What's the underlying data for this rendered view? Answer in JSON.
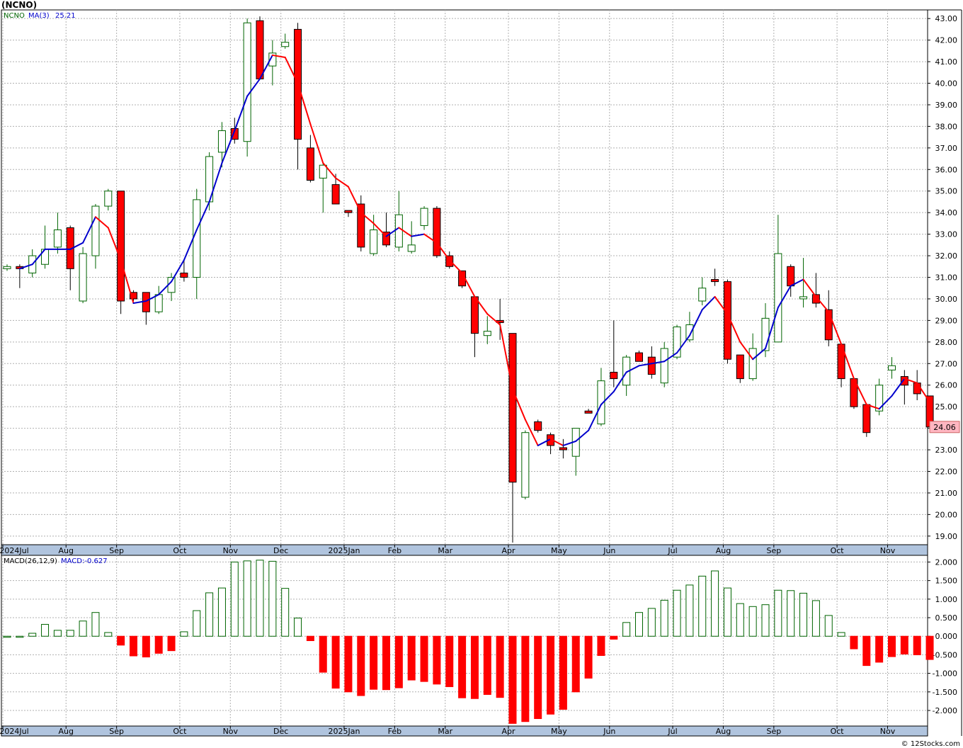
{
  "header": {
    "title": "(NCNO)"
  },
  "footer": {
    "copyright": "© 12Stocks.com"
  },
  "colors": {
    "up": "#006400",
    "down": "#ff0000",
    "ma_up": "#0000cc",
    "ma_down": "#ff0000",
    "grid": "#b0b0b0",
    "axis_band": "#b0c4de",
    "last_price_bg": "#ffb6c1"
  },
  "chart_data": [
    {
      "type": "candlestick",
      "legend": {
        "symbol": "NCNO",
        "indicator": "MA(3)",
        "value": "25.21"
      },
      "ylim": [
        18.6,
        43.4
      ],
      "y_ticks": [
        19,
        20,
        21,
        22,
        23,
        24,
        25,
        26,
        27,
        28,
        29,
        30,
        31,
        32,
        33,
        34,
        35,
        36,
        37,
        38,
        39,
        40,
        41,
        42,
        43
      ],
      "y_tick_labels": [
        "19.00",
        "20.00",
        "21.00",
        "22.00",
        "23.00",
        "24.00",
        "25.00",
        "26.00",
        "27.00",
        "28.00",
        "29.00",
        "30.00",
        "31.00",
        "32.00",
        "33.00",
        "34.00",
        "35.00",
        "36.00",
        "37.00",
        "38.00",
        "39.00",
        "40.00",
        "41.00",
        "42.00",
        "43.00"
      ],
      "last_price_label": "24.06",
      "x_labels": [
        {
          "label": "2024Jul",
          "week": 0
        },
        {
          "label": "Aug",
          "week": 5
        },
        {
          "label": "Sep",
          "week": 9
        },
        {
          "label": "Oct",
          "week": 14
        },
        {
          "label": "Nov",
          "week": 18
        },
        {
          "label": "Dec",
          "week": 22
        },
        {
          "label": "2025Jan",
          "week": 27
        },
        {
          "label": "Feb",
          "week": 31
        },
        {
          "label": "Mar",
          "week": 35
        },
        {
          "label": "Apr",
          "week": 40
        },
        {
          "label": "May",
          "week": 44
        },
        {
          "label": "Jun",
          "week": 48
        },
        {
          "label": "Jul",
          "week": 53
        },
        {
          "label": "Aug",
          "week": 57
        },
        {
          "label": "Sep",
          "week": 61
        },
        {
          "label": "Oct",
          "week": 66
        },
        {
          "label": "Nov",
          "week": 70
        }
      ],
      "ohlc": [
        [
          31.4,
          31.6,
          31.3,
          31.5
        ],
        [
          31.5,
          31.6,
          30.5,
          31.4
        ],
        [
          31.2,
          32.3,
          31.0,
          32.0
        ],
        [
          31.6,
          33.4,
          31.4,
          32.3
        ],
        [
          32.4,
          34.0,
          32.1,
          33.2
        ],
        [
          33.3,
          33.4,
          30.4,
          31.4
        ],
        [
          29.9,
          32.4,
          29.8,
          32.1
        ],
        [
          32.0,
          34.4,
          31.4,
          34.3
        ],
        [
          34.3,
          35.1,
          34.1,
          35.0
        ],
        [
          35.0,
          35.0,
          29.3,
          29.9
        ],
        [
          30.3,
          30.4,
          29.9,
          30.0
        ],
        [
          30.3,
          30.3,
          28.8,
          29.4
        ],
        [
          29.4,
          30.6,
          29.3,
          30.2
        ],
        [
          30.3,
          31.2,
          29.9,
          31.0
        ],
        [
          31.2,
          31.8,
          30.8,
          31.0
        ],
        [
          31.0,
          35.1,
          30.0,
          34.6
        ],
        [
          34.5,
          36.8,
          34.1,
          36.6
        ],
        [
          36.8,
          38.2,
          36.1,
          37.8
        ],
        [
          37.9,
          38.4,
          37.2,
          37.4
        ],
        [
          37.3,
          43.0,
          36.6,
          42.8
        ],
        [
          42.9,
          43.1,
          40.2,
          40.2
        ],
        [
          40.8,
          42.0,
          39.9,
          41.4
        ],
        [
          41.7,
          42.3,
          41.6,
          41.9
        ],
        [
          42.5,
          42.8,
          36.0,
          37.4
        ],
        [
          37.0,
          37.6,
          35.4,
          35.5
        ],
        [
          35.6,
          36.3,
          34.0,
          36.2
        ],
        [
          35.3,
          35.8,
          34.5,
          34.4
        ],
        [
          34.1,
          34.1,
          33.8,
          34.0
        ],
        [
          34.4,
          34.8,
          32.2,
          32.4
        ],
        [
          32.1,
          33.9,
          32.0,
          33.2
        ],
        [
          33.1,
          34.0,
          32.4,
          32.5
        ],
        [
          32.4,
          35.0,
          32.2,
          33.9
        ],
        [
          32.2,
          33.6,
          32.1,
          32.5
        ],
        [
          33.4,
          34.3,
          33.2,
          34.2
        ],
        [
          34.2,
          34.3,
          31.9,
          32.0
        ],
        [
          32.0,
          32.2,
          31.4,
          31.5
        ],
        [
          31.3,
          31.3,
          30.5,
          30.6
        ],
        [
          30.1,
          30.1,
          27.3,
          28.4
        ],
        [
          28.3,
          29.2,
          27.9,
          28.5
        ],
        [
          29.0,
          30.0,
          28.1,
          28.9
        ],
        [
          28.4,
          28.4,
          18.7,
          21.5
        ],
        [
          20.8,
          23.9,
          20.7,
          23.8
        ],
        [
          24.3,
          24.4,
          23.8,
          23.9
        ],
        [
          23.7,
          23.8,
          22.8,
          23.2
        ],
        [
          23.1,
          23.5,
          22.6,
          23.0
        ],
        [
          22.7,
          24.0,
          21.8,
          24.0
        ],
        [
          24.8,
          24.9,
          24.7,
          24.7
        ],
        [
          24.2,
          26.8,
          24.1,
          26.2
        ],
        [
          26.6,
          29.0,
          25.9,
          26.3
        ],
        [
          26.0,
          27.4,
          25.5,
          27.3
        ],
        [
          27.5,
          27.6,
          27.1,
          27.1
        ],
        [
          27.3,
          27.8,
          26.3,
          26.5
        ],
        [
          26.1,
          28.0,
          25.9,
          27.7
        ],
        [
          27.3,
          28.8,
          27.2,
          28.7
        ],
        [
          28.1,
          29.4,
          28.0,
          28.8
        ],
        [
          29.9,
          31.0,
          29.7,
          30.5
        ],
        [
          30.9,
          31.4,
          30.6,
          30.8
        ],
        [
          30.8,
          30.9,
          27.0,
          27.2
        ],
        [
          27.4,
          27.4,
          26.1,
          26.3
        ],
        [
          26.3,
          28.4,
          26.2,
          27.7
        ],
        [
          27.6,
          29.8,
          27.3,
          29.1
        ],
        [
          28.0,
          33.9,
          28.0,
          32.1
        ],
        [
          31.5,
          31.6,
          30.1,
          30.6
        ],
        [
          30.0,
          31.9,
          29.6,
          30.1
        ],
        [
          30.2,
          31.2,
          29.6,
          29.8
        ],
        [
          29.5,
          30.4,
          27.8,
          28.1
        ],
        [
          27.9,
          27.9,
          25.9,
          26.3
        ],
        [
          26.3,
          26.3,
          24.9,
          25.0
        ],
        [
          25.1,
          25.1,
          23.6,
          23.8
        ],
        [
          24.8,
          26.3,
          24.6,
          26.0
        ],
        [
          26.7,
          27.3,
          26.3,
          26.9
        ],
        [
          26.4,
          26.7,
          25.1,
          26.0
        ],
        [
          26.1,
          26.7,
          25.3,
          25.6
        ],
        [
          25.5,
          25.5,
          24.0,
          24.06
        ]
      ],
      "ma3": [
        31.5,
        31.4,
        31.6,
        32.3,
        32.3,
        32.3,
        32.6,
        33.8,
        33.3,
        31.8,
        29.8,
        29.9,
        30.2,
        30.8,
        31.8,
        33.2,
        34.5,
        36.3,
        37.8,
        39.4,
        40.2,
        41.3,
        41.2,
        40.0,
        38.1,
        36.3,
        35.6,
        35.2,
        34.0,
        33.5,
        32.9,
        33.3,
        32.9,
        33.0,
        32.6,
        31.8,
        31.2,
        30.1,
        29.3,
        28.8,
        25.8,
        24.4,
        23.2,
        23.5,
        23.2,
        23.4,
        23.9,
        25.1,
        25.7,
        26.6,
        26.9,
        27.0,
        27.1,
        27.5,
        28.3,
        29.5,
        30.1,
        29.3,
        28.0,
        27.2,
        27.7,
        29.6,
        30.6,
        30.9,
        30.1,
        29.4,
        27.9,
        26.3,
        25.1,
        24.9,
        25.5,
        26.3,
        26.1,
        25.21
      ]
    },
    {
      "type": "bar",
      "legend": {
        "indicator": "MACD(26,12,9)",
        "value": "MACD:-0.627"
      },
      "ylim": [
        -2.42,
        2.18
      ],
      "y_ticks": [
        -2,
        -1.5,
        -1,
        -0.5,
        0,
        0.5,
        1,
        1.5,
        2
      ],
      "y_tick_labels": [
        "-2.000",
        "-1.500",
        "-1.000",
        "-0.500",
        "0.000",
        "0.500",
        "1.000",
        "1.500",
        "2.000"
      ],
      "values": [
        0.0,
        0.0,
        0.08,
        0.32,
        0.16,
        0.16,
        0.41,
        0.64,
        0.1,
        -0.24,
        -0.53,
        -0.56,
        -0.46,
        -0.39,
        0.12,
        0.69,
        1.17,
        1.3,
        2.0,
        2.03,
        2.05,
        2.02,
        1.29,
        0.49,
        -0.12,
        -0.97,
        -1.4,
        -1.5,
        -1.6,
        -1.43,
        -1.44,
        -1.39,
        -1.18,
        -1.22,
        -1.29,
        -1.36,
        -1.66,
        -1.68,
        -1.57,
        -1.65,
        -2.35,
        -2.3,
        -2.22,
        -2.1,
        -1.97,
        -1.5,
        -1.13,
        -0.52,
        -0.08,
        0.37,
        0.64,
        0.75,
        0.97,
        1.24,
        1.38,
        1.62,
        1.76,
        1.3,
        0.88,
        0.8,
        0.85,
        1.24,
        1.23,
        1.16,
        0.96,
        0.56,
        0.1,
        -0.34,
        -0.79,
        -0.7,
        -0.55,
        -0.48,
        -0.5,
        -0.627
      ]
    }
  ]
}
